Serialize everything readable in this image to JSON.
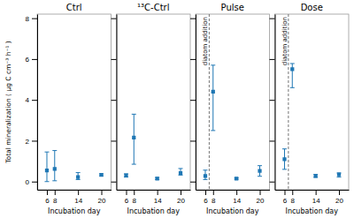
{
  "chart_data": [
    {
      "type": "scatter",
      "title": "Ctrl",
      "marker": "square",
      "x": [
        6,
        8,
        14,
        20
      ],
      "values": [
        0.55,
        0.62,
        0.22,
        0.33
      ],
      "lower_err": [
        0.55,
        0.58,
        0.12,
        0.05
      ],
      "upper_err": [
        0.9,
        0.9,
        0.22,
        0.05
      ],
      "xlim": [
        3.5,
        22.5
      ],
      "xticks": [
        6,
        8,
        14,
        20
      ],
      "ylim": [
        -0.4,
        8.2
      ],
      "yticks": [
        0,
        2,
        4,
        6,
        8
      ],
      "xlabel": "Incubation day",
      "ylabel": "Total mineralization ( µg C cm⁻³ h⁻¹ )"
    },
    {
      "type": "scatter",
      "title": "¹³C-Ctrl",
      "marker": "square",
      "x": [
        6,
        8,
        14,
        20
      ],
      "values": [
        0.3,
        2.15,
        0.15,
        0.42
      ],
      "lower_err": [
        0.08,
        1.3,
        0.05,
        0.1
      ],
      "upper_err": [
        0.08,
        1.15,
        0.05,
        0.22
      ],
      "xlim": [
        3.5,
        22.5
      ],
      "xticks": [
        6,
        8,
        14,
        20
      ],
      "ylim": [
        -0.4,
        8.2
      ],
      "yticks": [
        0,
        2,
        4,
        6,
        8
      ],
      "xlabel": "Incubation day",
      "tick_labels": "x"
    },
    {
      "type": "scatter",
      "title": "Pulse",
      "marker": "square",
      "x": [
        6,
        8,
        14,
        20
      ],
      "values": [
        0.28,
        4.4,
        0.15,
        0.52
      ],
      "lower_err": [
        0.18,
        1.9,
        0.04,
        0.26
      ],
      "upper_err": [
        0.28,
        1.3,
        0.04,
        0.26
      ],
      "xlim": [
        3.5,
        22.5
      ],
      "xticks": [
        6,
        8,
        14,
        20
      ],
      "ylim": [
        -0.4,
        8.2
      ],
      "yticks": [
        0,
        2,
        4,
        6,
        8
      ],
      "xlabel": "Incubation day",
      "tick_labels": "x",
      "annotations": [
        {
          "x": 7,
          "text": "diatom addition"
        }
      ]
    },
    {
      "type": "scatter",
      "title": "Dose",
      "marker": "square",
      "x": [
        6,
        8,
        14,
        20
      ],
      "values": [
        1.1,
        5.5,
        0.28,
        0.35
      ],
      "lower_err": [
        0.5,
        0.9,
        0.07,
        0.13
      ],
      "upper_err": [
        0.5,
        0.28,
        0.07,
        0.07
      ],
      "xlim": [
        3.5,
        22.5
      ],
      "xticks": [
        6,
        8,
        14,
        20
      ],
      "ylim": [
        -0.4,
        8.2
      ],
      "yticks": [
        0,
        2,
        4,
        6,
        8
      ],
      "xlabel": "Incubation day",
      "tick_labels": "x",
      "annotations": [
        {
          "x": 7,
          "text": "diatom addition"
        }
      ]
    }
  ]
}
